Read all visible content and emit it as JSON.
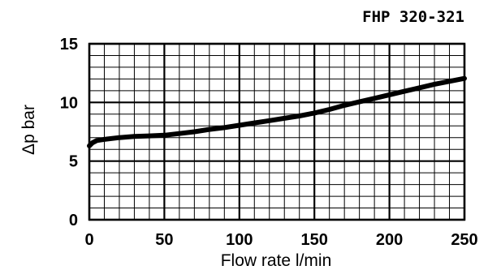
{
  "chart_data": {
    "type": "line",
    "title": "FHP 320-321",
    "xlabel": "Flow rate l/min",
    "ylabel": "Δp bar",
    "xlim": [
      0,
      250
    ],
    "ylim": [
      0,
      15
    ],
    "xticks": [
      "0",
      "50",
      "100",
      "150",
      "200",
      "250"
    ],
    "yticks": [
      "0",
      "5",
      "10",
      "15"
    ],
    "grid": true,
    "series": [
      {
        "x": [
          0,
          2,
          5,
          10,
          20,
          30,
          40,
          50,
          60,
          70,
          80,
          90,
          100,
          110,
          120,
          130,
          140,
          150,
          160,
          170,
          180,
          190,
          200,
          210,
          220,
          230,
          240,
          250
        ],
        "y": [
          6.3,
          6.55,
          6.75,
          6.85,
          7.0,
          7.1,
          7.15,
          7.2,
          7.35,
          7.5,
          7.7,
          7.85,
          8.05,
          8.25,
          8.45,
          8.65,
          8.85,
          9.1,
          9.4,
          9.75,
          10.05,
          10.35,
          10.65,
          10.95,
          11.25,
          11.55,
          11.8,
          12.05
        ]
      }
    ],
    "line_color": "#000000"
  }
}
